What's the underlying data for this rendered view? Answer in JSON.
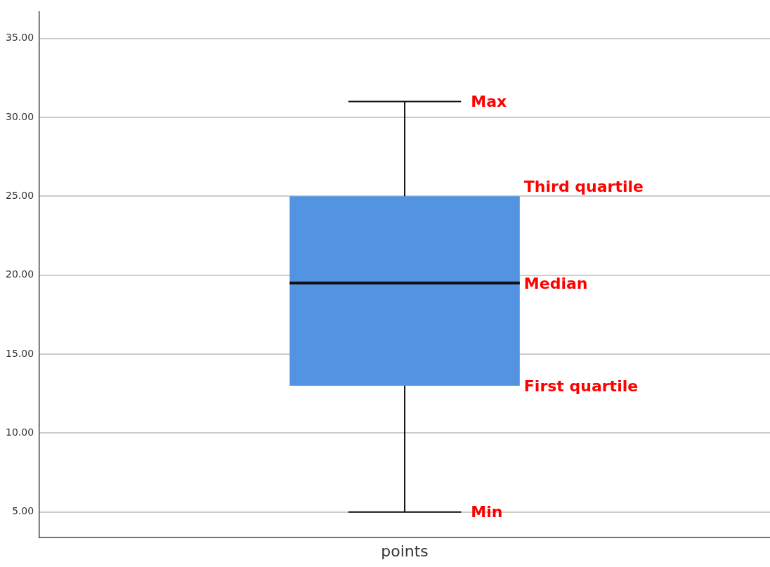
{
  "chart_data": {
    "type": "box",
    "categories": [
      "points"
    ],
    "boxes": [
      {
        "low": 5,
        "q1": 13,
        "median": 19.5,
        "q3": 25,
        "high": 31
      }
    ],
    "color": "#5294e2",
    "ylim": [
      3.4,
      36.7
    ],
    "yticks": [
      {
        "value": 5,
        "label": "5.00"
      },
      {
        "value": 10,
        "label": "10.00"
      },
      {
        "value": 15,
        "label": "15.00"
      },
      {
        "value": 20,
        "label": "20.00"
      },
      {
        "value": 25,
        "label": "25.00"
      },
      {
        "value": 30,
        "label": "30.00"
      },
      {
        "value": 35,
        "label": "35.00"
      }
    ],
    "grid": "y",
    "annotations": [
      "Max",
      "Third quartile",
      "Median",
      "First quartile",
      "Min"
    ]
  }
}
